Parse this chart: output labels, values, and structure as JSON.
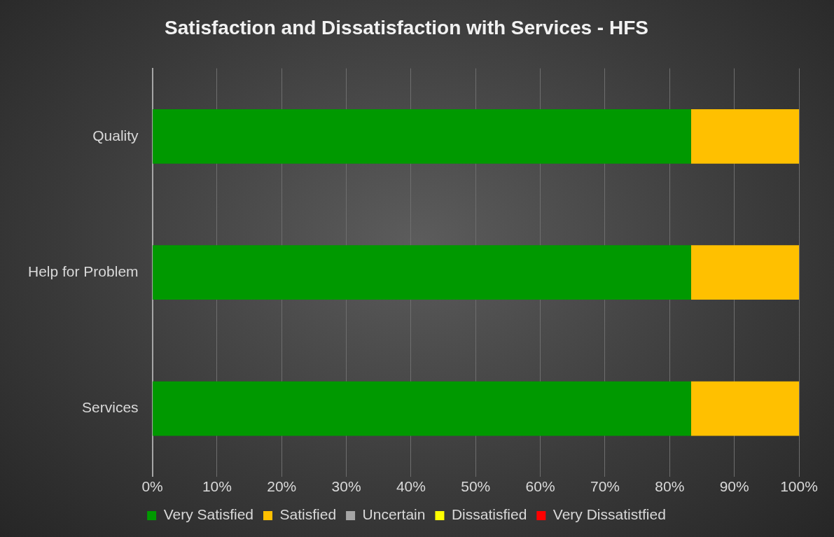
{
  "chart_data": {
    "type": "bar",
    "orientation": "horizontal",
    "stacked": true,
    "title": "Satisfaction and Dissatisfaction with Services - HFS",
    "categories": [
      "Quality",
      "Help for Problem",
      "Services"
    ],
    "series": [
      {
        "name": "Very Satisfied",
        "color": "#009900",
        "values": [
          83.3,
          83.3,
          83.3
        ]
      },
      {
        "name": "Satisfied",
        "color": "#ffc000",
        "values": [
          16.7,
          16.7,
          16.7
        ]
      },
      {
        "name": "Uncertain",
        "color": "#a6a6a6",
        "values": [
          0,
          0,
          0
        ]
      },
      {
        "name": "Dissatisfied",
        "color": "#ffff00",
        "values": [
          0,
          0,
          0
        ]
      },
      {
        "name": "Very Dissatistfied",
        "color": "#ff0000",
        "values": [
          0,
          0,
          0
        ]
      }
    ],
    "xlim": [
      0,
      100
    ],
    "xticks": [
      {
        "value": 0,
        "label": "0%"
      },
      {
        "value": 10,
        "label": "10%"
      },
      {
        "value": 20,
        "label": "20%"
      },
      {
        "value": 30,
        "label": "30%"
      },
      {
        "value": 40,
        "label": "40%"
      },
      {
        "value": 50,
        "label": "50%"
      },
      {
        "value": 60,
        "label": "60%"
      },
      {
        "value": 70,
        "label": "70%"
      },
      {
        "value": 80,
        "label": "80%"
      },
      {
        "value": 90,
        "label": "90%"
      },
      {
        "value": 100,
        "label": "100%"
      }
    ],
    "grid": "x",
    "legend": "bottom"
  }
}
